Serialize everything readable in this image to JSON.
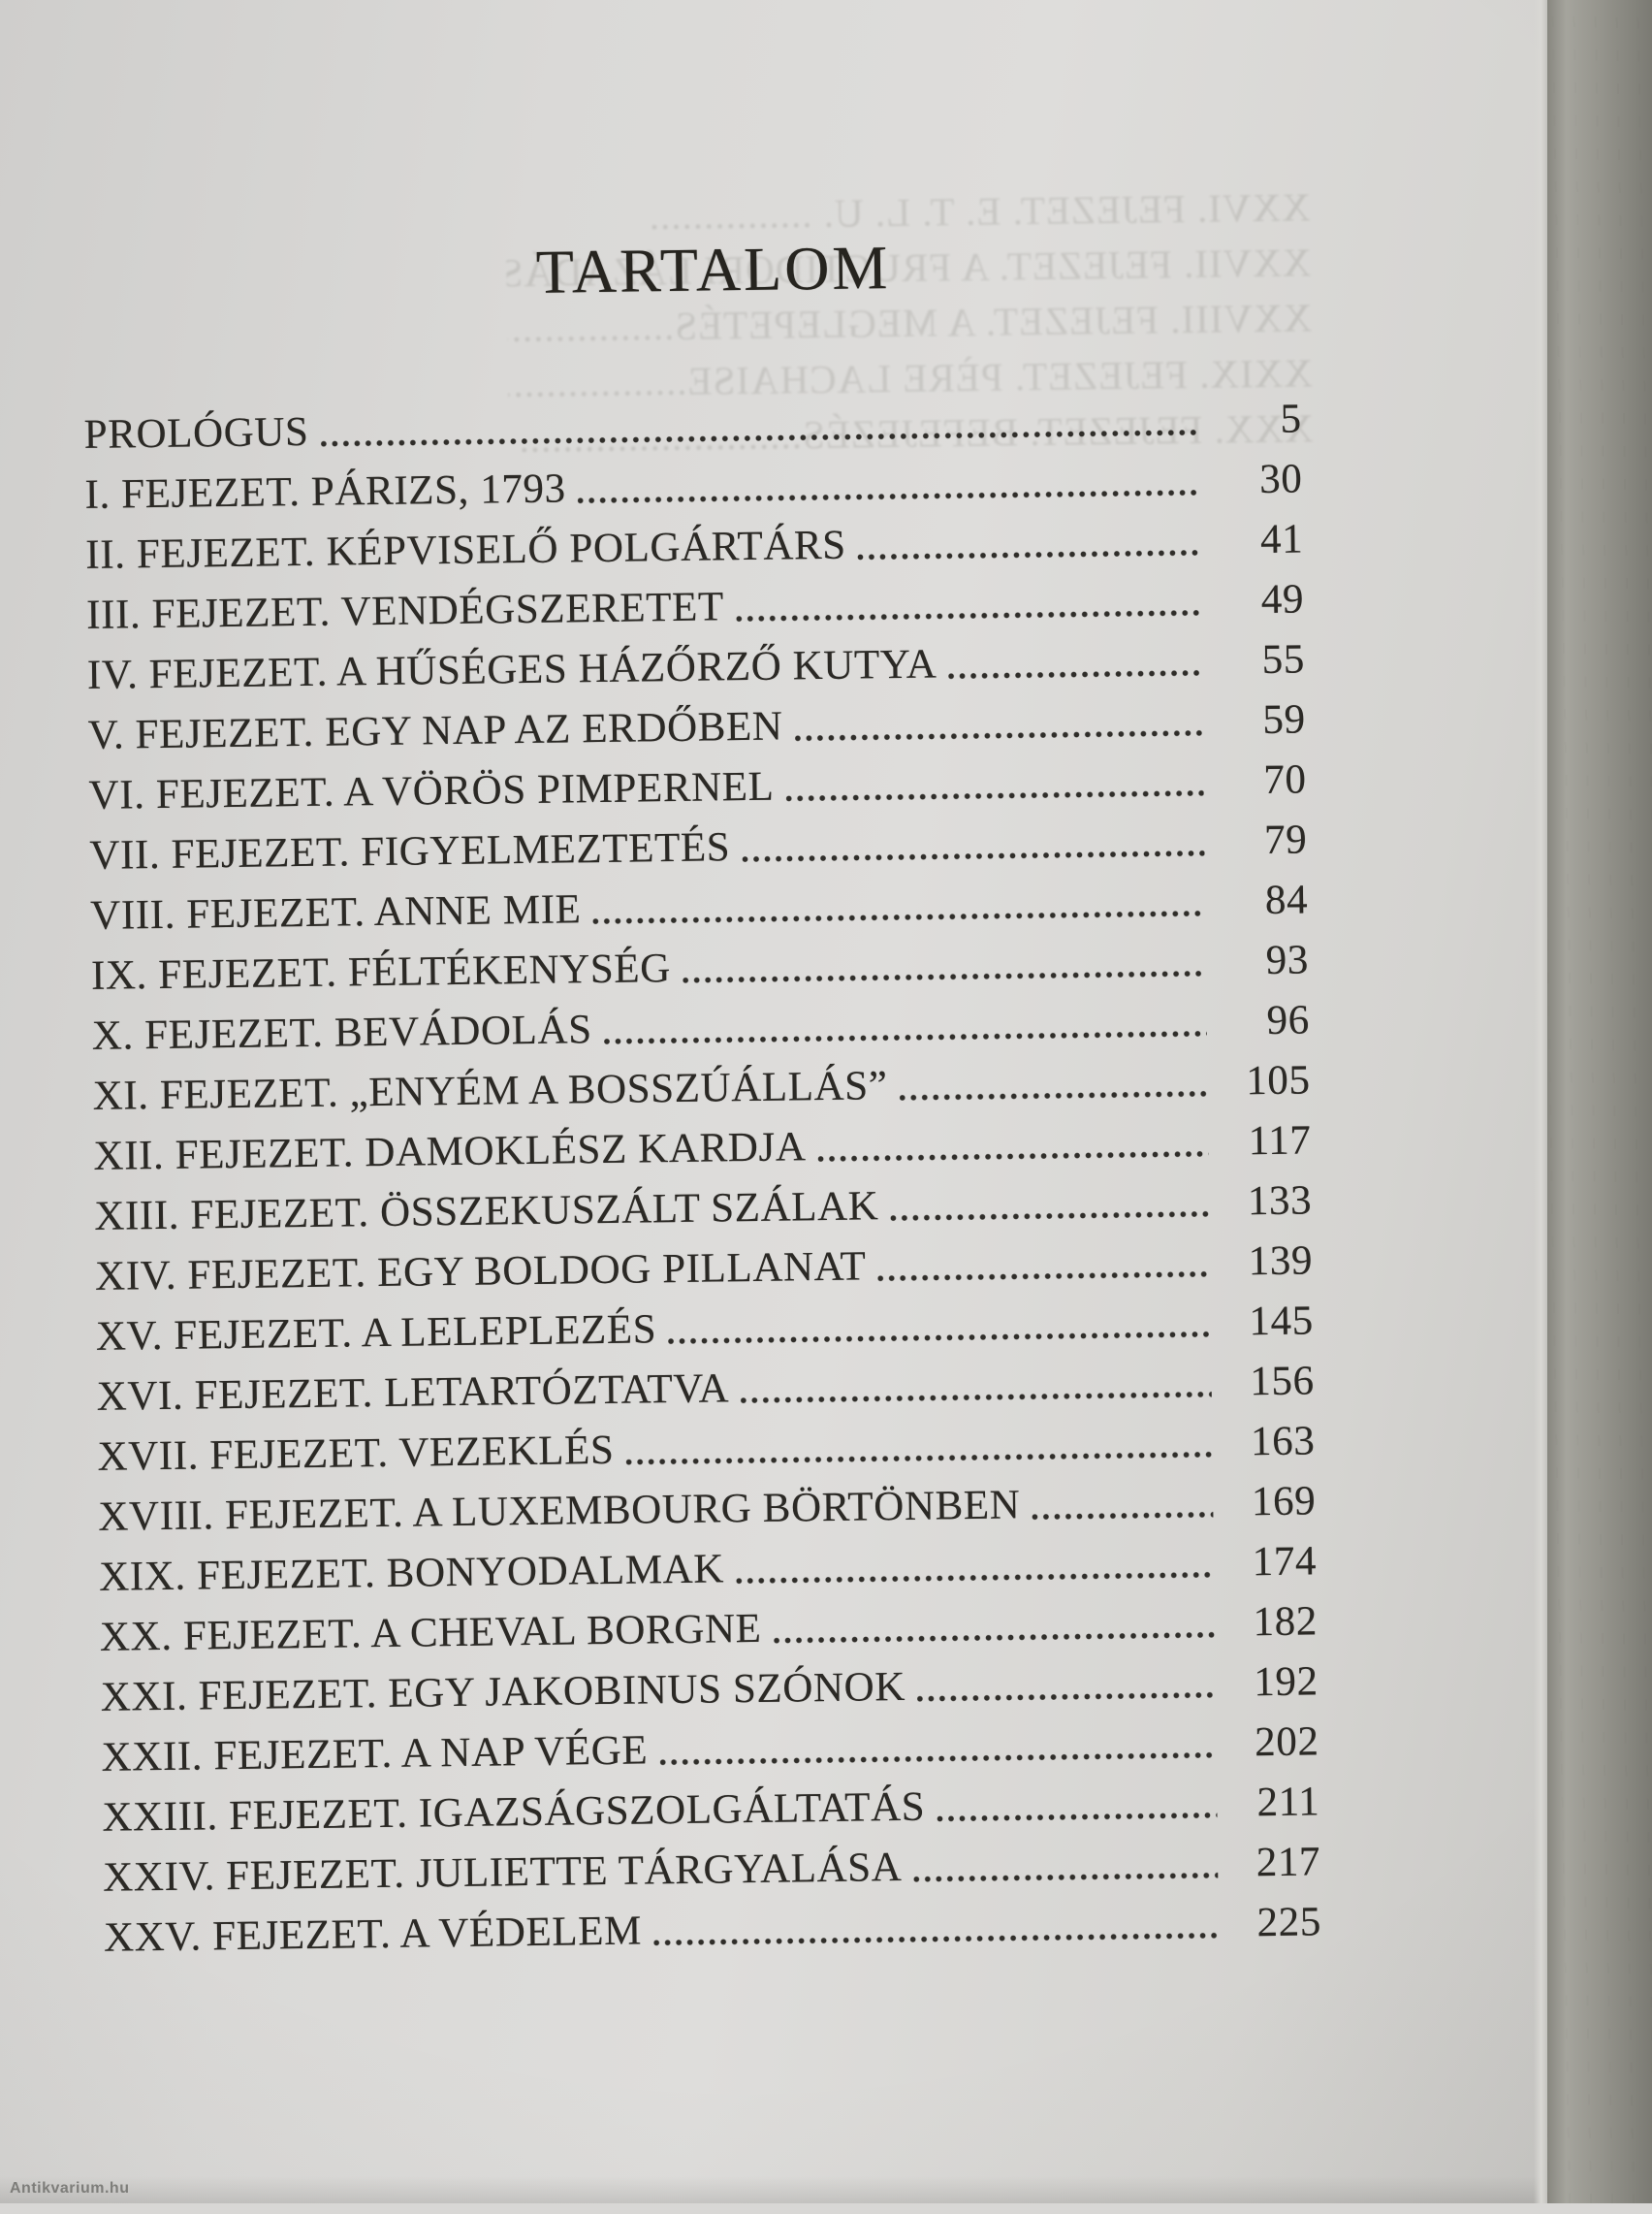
{
  "page": {
    "title": "TARTALOM",
    "watermark": "Antikvarium.hu"
  },
  "toc": {
    "entries": [
      {
        "label": "PROLÓGUS",
        "page": "5"
      },
      {
        "label": "I. FEJEZET. PÁRIZS, 1793",
        "page": "30"
      },
      {
        "label": "II. FEJEZET. KÉPVISELŐ POLGÁRTÁRS",
        "page": "41"
      },
      {
        "label": "III. FEJEZET. VENDÉGSZERETET",
        "page": "49"
      },
      {
        "label": "IV. FEJEZET. A HŰSÉGES HÁZŐRZŐ KUTYA",
        "page": "55"
      },
      {
        "label": "V. FEJEZET. EGY NAP AZ ERDŐBEN",
        "page": "59"
      },
      {
        "label": "VI. FEJEZET. A VÖRÖS PIMPERNEL",
        "page": "70"
      },
      {
        "label": "VII. FEJEZET. FIGYELMEZTETÉS",
        "page": "79"
      },
      {
        "label": "VIII. FEJEZET. ANNE MIE",
        "page": "84"
      },
      {
        "label": "IX. FEJEZET. FÉLTÉKENYSÉG",
        "page": "93"
      },
      {
        "label": "X. FEJEZET. BEVÁDOLÁS",
        "page": "96"
      },
      {
        "label": "XI. FEJEZET. „ENYÉM A BOSSZÚÁLLÁS”",
        "page": "105"
      },
      {
        "label": "XII. FEJEZET. DAMOKLÉSZ KARDJA",
        "page": "117"
      },
      {
        "label": "XIII. FEJEZET. ÖSSZEKUSZÁLT SZÁLAK",
        "page": "133"
      },
      {
        "label": "XIV. FEJEZET. EGY BOLDOG PILLANAT",
        "page": "139"
      },
      {
        "label": "XV. FEJEZET. A LELEPLEZÉS",
        "page": "145"
      },
      {
        "label": "XVI. FEJEZET. LETARTÓZTATVA",
        "page": "156"
      },
      {
        "label": "XVII. FEJEZET. VEZEKLÉS",
        "page": "163"
      },
      {
        "label": "XVIII. FEJEZET. A LUXEMBOURG BÖRTÖNBEN",
        "page": "169"
      },
      {
        "label": "XIX. FEJEZET. BONYODALMAK",
        "page": "174"
      },
      {
        "label": "XX. FEJEZET. A CHEVAL BORGNE",
        "page": "182"
      },
      {
        "label": "XXI. FEJEZET. EGY JAKOBINUS SZÓNOK",
        "page": "192"
      },
      {
        "label": "XXII. FEJEZET. A NAP VÉGE",
        "page": "202"
      },
      {
        "label": "XXIII. FEJEZET. IGAZSÁGSZOLGÁLTATÁS",
        "page": "211"
      },
      {
        "label": "XXIV. FEJEZET. JULIETTE TÁRGYALÁSA",
        "page": "217"
      },
      {
        "label": "XXV. FEJEZET. A VÉDELEM",
        "page": "225"
      }
    ]
  },
  "showthrough": {
    "lines": [
      "XXVI. FEJEZET. E. T. L. U. ...............",
      "XXVII. FEJEZET. A FRUCTIDORI LÁZADÁSOK...........",
      "XXVIII. FEJEZET. A MEGLEPETÉS....................",
      "XXIX. FEJEZET. PÈRE LACHAISE.....................",
      "XXX. FEJEZET. BEFEJEZÉS.........................."
    ]
  },
  "colors": {
    "paper": "#d8d7d5",
    "ink": "#2b2925",
    "fore_edge": "#98978f"
  }
}
